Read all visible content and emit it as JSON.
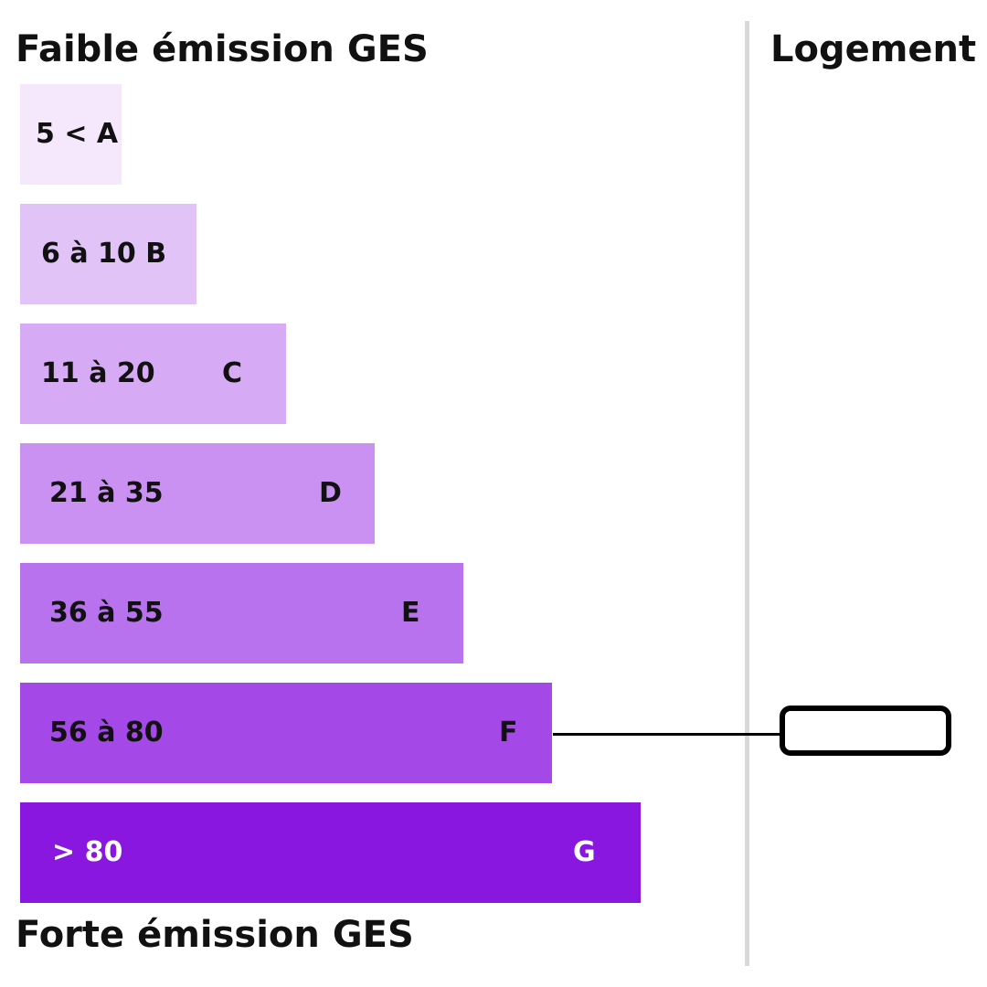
{
  "labels": {
    "top": "Faible émission GES",
    "bottom": "Forte émission GES",
    "housing": "Logement"
  },
  "chart_data": {
    "type": "bar",
    "orientation": "horizontal",
    "categories": [
      "A",
      "B",
      "C",
      "D",
      "E",
      "F",
      "G"
    ],
    "ranges": [
      "5 <",
      "6 à 10",
      "11 à 20",
      "21 à 35",
      "36 à 55",
      "56 à 80",
      "> 80"
    ],
    "bar_labels": [
      "5 < A",
      "6 à 10 B",
      "11 à 20",
      "21 à 35",
      "36 à 55",
      "56 à 80",
      "> 80"
    ],
    "letters": [
      "",
      "",
      "C",
      "D",
      "E",
      "F",
      "G"
    ],
    "colors": [
      "#f6e8fc",
      "#e2c3f8",
      "#d7aaf5",
      "#cb91f2",
      "#b972ee",
      "#a548e8",
      "#8917df"
    ],
    "text_colors": [
      "#111111",
      "#111111",
      "#111111",
      "#111111",
      "#111111",
      "#111111",
      "#ffffff"
    ],
    "highlighted_class": "F",
    "highlight_value": ""
  }
}
